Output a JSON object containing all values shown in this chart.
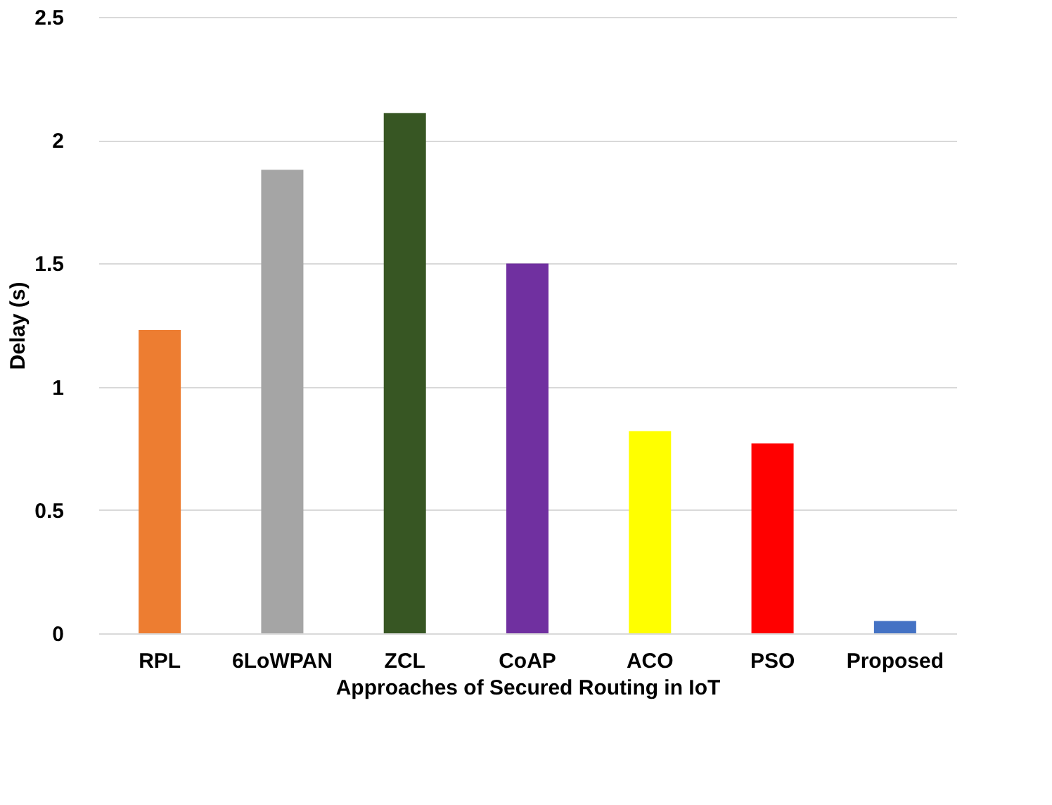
{
  "chart_data": {
    "type": "bar",
    "xlabel": "Approaches of Secured Routing in IoT",
    "ylabel": "Delay (s)",
    "categories": [
      "RPL",
      "6LoWPAN",
      "ZCL",
      "CoAP",
      "ACO",
      "PSO",
      "Proposed"
    ],
    "values": [
      1.23,
      1.88,
      2.11,
      1.5,
      0.82,
      0.77,
      0.05
    ],
    "colors": [
      "#ed7d31",
      "#a5a5a5",
      "#375623",
      "#7030a0",
      "#ffff00",
      "#ff0000",
      "#4472c4"
    ],
    "ylim": [
      0,
      2.5
    ],
    "yticks": [
      0,
      0.5,
      1,
      1.5,
      2,
      2.5
    ],
    "grid": "y"
  }
}
